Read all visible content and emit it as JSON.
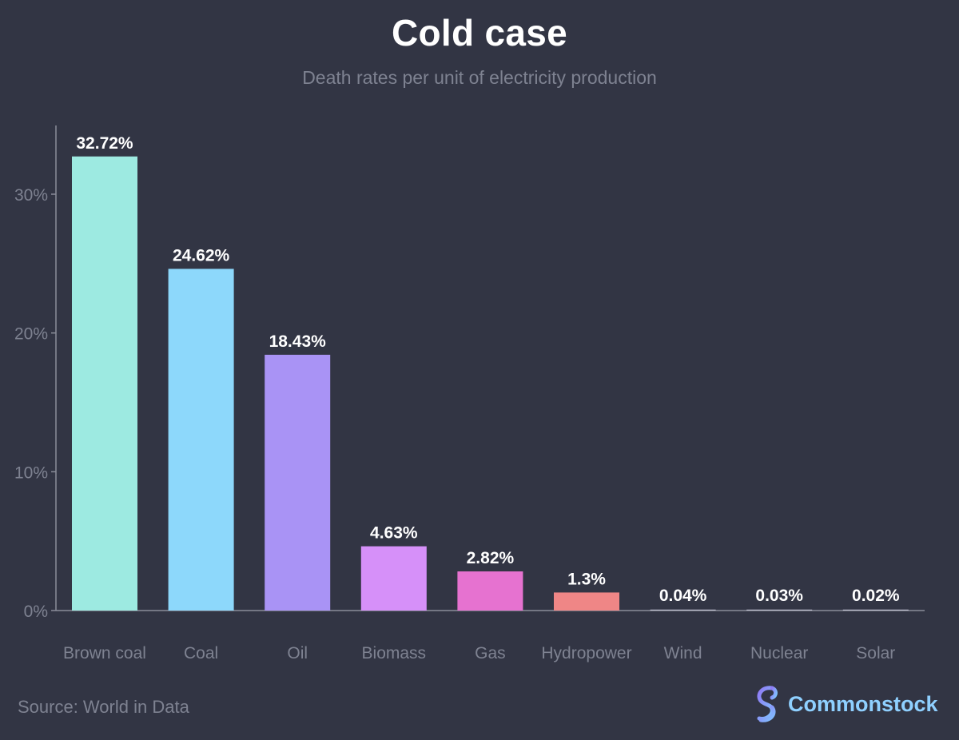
{
  "header": {
    "title": "Cold case",
    "subtitle": "Death rates per unit of electricity production"
  },
  "footer": {
    "source": "Source: World in Data",
    "brand_name": "Commonstock",
    "brand_icon": "commonstock-logo-icon"
  },
  "chart_data": {
    "type": "bar",
    "title": "Cold case",
    "subtitle": "Death rates per unit of electricity production",
    "xlabel": "",
    "ylabel": "",
    "ylim": [
      0,
      35
    ],
    "yticks": [
      0,
      10,
      20,
      30
    ],
    "ytick_labels": [
      "0%",
      "10%",
      "20%",
      "30%"
    ],
    "grid": false,
    "categories": [
      "Brown coal",
      "Coal",
      "Oil",
      "Biomass",
      "Gas",
      "Hydropower",
      "Wind",
      "Nuclear",
      "Solar"
    ],
    "values": [
      32.72,
      24.62,
      18.43,
      4.63,
      2.82,
      1.3,
      0.04,
      0.03,
      0.02
    ],
    "value_labels": [
      "32.72%",
      "24.62%",
      "18.43%",
      "4.63%",
      "2.82%",
      "1.3%",
      "0.04%",
      "0.03%",
      "0.02%"
    ],
    "colors": [
      "#9deae1",
      "#8dd8fb",
      "#a993f5",
      "#d690f9",
      "#e672d0",
      "#ef8686",
      "#bfbfcf",
      "#bfbfcf",
      "#bfbfcf"
    ]
  },
  "theme": {
    "background": "#323544",
    "axis_color": "#8a8d99",
    "tick_label_color": "#7e8291",
    "value_label_color": "#ffffff"
  }
}
